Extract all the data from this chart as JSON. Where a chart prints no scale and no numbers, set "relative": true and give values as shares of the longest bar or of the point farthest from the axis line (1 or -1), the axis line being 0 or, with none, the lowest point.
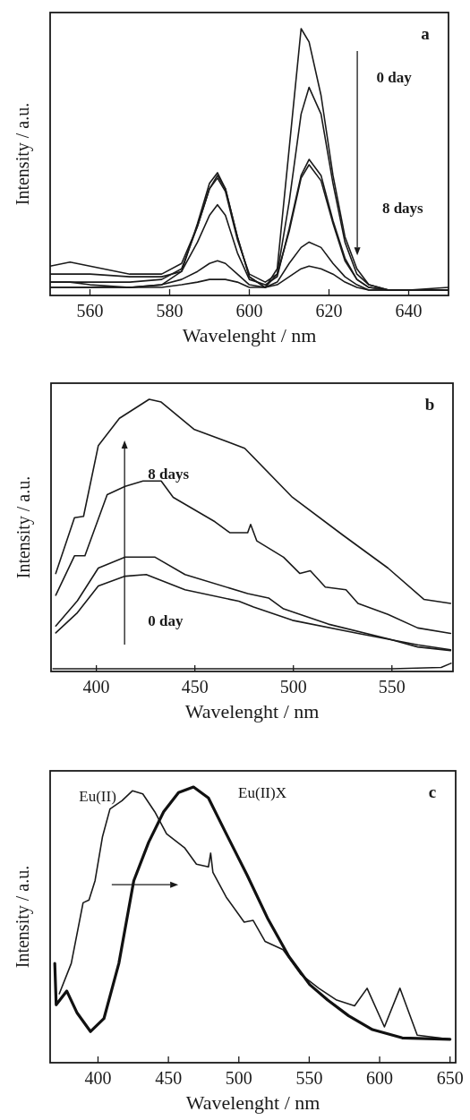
{
  "chart_data": [
    {
      "type": "line",
      "title": "a",
      "xlabel": "Wavelenght / nm",
      "ylabel": "Intensity / a.u.",
      "relative": true,
      "xlim": [
        550,
        650
      ],
      "xticks": [
        560,
        580,
        600,
        620,
        640
      ],
      "tick_labels": "x",
      "line_style": "solid",
      "x": [
        550,
        555,
        560,
        570,
        578,
        583,
        587,
        590,
        592,
        594,
        597,
        600,
        604,
        607,
        610,
        613,
        615,
        618,
        621,
        624,
        627,
        630,
        635,
        640,
        650
      ],
      "series": [
        {
          "color": "#1a1a1a",
          "values": [
            0.03,
            0.03,
            0.03,
            0.03,
            0.04,
            0.09,
            0.27,
            0.42,
            0.46,
            0.4,
            0.22,
            0.07,
            0.03,
            0.1,
            0.55,
            1.0,
            0.95,
            0.75,
            0.45,
            0.22,
            0.1,
            0.04,
            0.02,
            0.02,
            0.03
          ]
        },
        {
          "color": "#1a1a1a",
          "values": [
            0.05,
            0.05,
            0.05,
            0.05,
            0.06,
            0.1,
            0.26,
            0.4,
            0.45,
            0.4,
            0.22,
            0.07,
            0.03,
            0.08,
            0.35,
            0.68,
            0.78,
            0.68,
            0.42,
            0.2,
            0.08,
            0.04,
            0.02,
            0.02,
            0.02
          ]
        },
        {
          "color": "#1a1a1a",
          "values": [
            0.08,
            0.08,
            0.08,
            0.07,
            0.07,
            0.09,
            0.2,
            0.3,
            0.34,
            0.3,
            0.16,
            0.06,
            0.04,
            0.07,
            0.25,
            0.45,
            0.51,
            0.45,
            0.28,
            0.14,
            0.06,
            0.03,
            0.02,
            0.02,
            0.02
          ]
        },
        {
          "color": "#1a1a1a",
          "values": [
            0.11,
            0.125,
            0.11,
            0.08,
            0.08,
            0.12,
            0.26,
            0.4,
            0.44,
            0.39,
            0.21,
            0.08,
            0.05,
            0.08,
            0.24,
            0.44,
            0.49,
            0.43,
            0.27,
            0.13,
            0.06,
            0.03,
            0.02,
            0.02,
            0.02
          ]
        },
        {
          "color": "#1a1a1a",
          "values": [
            0.03,
            0.03,
            0.03,
            0.03,
            0.04,
            0.06,
            0.09,
            0.12,
            0.13,
            0.12,
            0.08,
            0.04,
            0.03,
            0.05,
            0.12,
            0.18,
            0.2,
            0.18,
            0.12,
            0.07,
            0.04,
            0.02,
            0.02,
            0.02,
            0.02
          ]
        },
        {
          "color": "#1a1a1a",
          "values": [
            0.05,
            0.05,
            0.04,
            0.03,
            0.03,
            0.04,
            0.05,
            0.06,
            0.06,
            0.06,
            0.05,
            0.03,
            0.03,
            0.04,
            0.07,
            0.1,
            0.11,
            0.1,
            0.08,
            0.05,
            0.03,
            0.02,
            0.02,
            0.02,
            0.02
          ]
        }
      ],
      "annotations": [
        "0 day",
        "8 days"
      ]
    },
    {
      "type": "line",
      "title": "b",
      "xlabel": "Wavelenght / nm",
      "ylabel": "Intensity / a.u.",
      "relative": true,
      "xlim": [
        377,
        581
      ],
      "xticks": [
        400,
        450,
        500,
        550
      ],
      "tick_labels": "x",
      "line_style": "solid",
      "series": [
        {
          "color": "#1a1a1a",
          "x": [
            379.4,
            388.9,
            393.5,
            401,
            411.7,
            426.8,
            432.9,
            449.5,
            475.3,
            499.5,
            525.3,
            548,
            566.2,
            579.8
          ],
          "values": [
            0.36,
            0.565,
            0.57,
            0.83,
            0.93,
            1.0,
            0.99,
            0.89,
            0.82,
            0.64,
            0.5,
            0.38,
            0.265,
            0.25
          ]
        },
        {
          "color": "#1a1a1a",
          "x": [
            379.4,
            388.9,
            394.2,
            405.5,
            414.6,
            423.7,
            432.9,
            439,
            460.2,
            467.7,
            476.8,
            478.3,
            481.4,
            495,
            503.3,
            508.6,
            516.2,
            526.7,
            532.8,
            548,
            563.1,
            579.8
          ],
          "values": [
            0.28,
            0.425,
            0.425,
            0.65,
            0.68,
            0.7,
            0.7,
            0.64,
            0.55,
            0.51,
            0.51,
            0.54,
            0.48,
            0.42,
            0.36,
            0.37,
            0.31,
            0.3,
            0.25,
            0.21,
            0.16,
            0.14
          ]
        },
        {
          "color": "#1a1a1a",
          "x": [
            379.4,
            390.4,
            401,
            414.6,
            429.8,
            445,
            476.8,
            487.4,
            495,
            517.7,
            548,
            563.1,
            579.8
          ],
          "values": [
            0.167,
            0.26,
            0.38,
            0.42,
            0.42,
            0.356,
            0.286,
            0.27,
            0.23,
            0.174,
            0.12,
            0.09,
            0.077
          ]
        },
        {
          "color": "#1a1a1a",
          "x": [
            379.4,
            390.4,
            401,
            414.6,
            425.3,
            445,
            472.3,
            479.8,
            499.5,
            532.8,
            563.1,
            579.8
          ],
          "values": [
            0.142,
            0.216,
            0.314,
            0.35,
            0.356,
            0.3,
            0.258,
            0.237,
            0.188,
            0.14,
            0.098,
            0.08
          ]
        },
        {
          "color": "#1a1a1a",
          "x": [
            378,
            400,
            450,
            500,
            550,
            575,
            580
          ],
          "values": [
            0.01,
            0.01,
            0.01,
            0.01,
            0.01,
            0.015,
            0.03
          ]
        }
      ],
      "annotations": [
        "8 days",
        "0 day"
      ]
    },
    {
      "type": "line",
      "title": "c",
      "xlabel": "Wavelenght / nm",
      "ylabel": "Intensity / a.u.",
      "relative": true,
      "xlim": [
        366,
        654
      ],
      "xticks": [
        400,
        450,
        500,
        550,
        600,
        650
      ],
      "tick_labels": "x",
      "line_style": "solid",
      "series": [
        {
          "name": "Eu(II)",
          "color": "#1a1a1a",
          "x": [
            372.5,
            381,
            389.4,
            393.6,
            397.9,
            403.2,
            408.5,
            417,
            424.4,
            431.8,
            440.3,
            448.7,
            461.4,
            469.9,
            478.4,
            480,
            481.6,
            491.1,
            503.8,
            510.2,
            518.6,
            531.4,
            544.1,
            556.8,
            569.5,
            582.2,
            591.1,
            603.4,
            614.4,
            626.7,
            650
          ],
          "values": [
            0.25,
            0.36,
            0.58,
            0.59,
            0.66,
            0.82,
            0.92,
            0.95,
            0.986,
            0.975,
            0.91,
            0.83,
            0.78,
            0.72,
            0.71,
            0.76,
            0.69,
            0.6,
            0.51,
            0.516,
            0.44,
            0.41,
            0.32,
            0.27,
            0.227,
            0.206,
            0.27,
            0.13,
            0.27,
            0.1,
            0.085
          ]
        },
        {
          "name": "Eu(II)X",
          "color": "#111111",
          "x": [
            369.3,
            370.3,
            377.8,
            385.2,
            394.7,
            404.2,
            414.8,
            425.4,
            436,
            446.6,
            457.2,
            467.8,
            478.4,
            491.1,
            505.9,
            520.8,
            535.6,
            550.4,
            563.1,
            578,
            594.9,
            616.1,
            650
          ],
          "values": [
            0.36,
            0.21,
            0.26,
            0.18,
            0.113,
            0.16,
            0.36,
            0.66,
            0.8,
            0.91,
            0.98,
            1.0,
            0.96,
            0.83,
            0.68,
            0.52,
            0.385,
            0.283,
            0.227,
            0.17,
            0.12,
            0.09,
            0.085
          ]
        }
      ]
    }
  ]
}
